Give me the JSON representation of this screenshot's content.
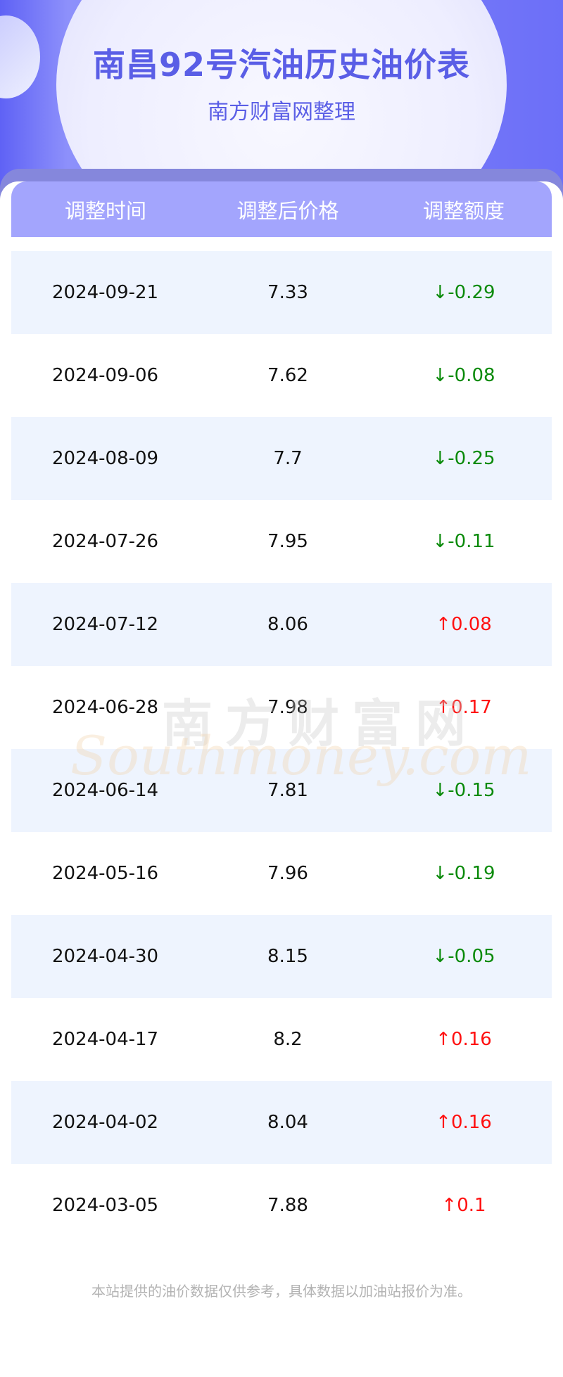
{
  "header": {
    "title": "南昌92号汽油历史油价表",
    "subtitle": "南方财富网整理"
  },
  "table": {
    "columns": [
      "调整时间",
      "调整后价格",
      "调整额度"
    ],
    "rows": [
      {
        "date": "2024-09-21",
        "price": "7.33",
        "change": "↓-0.29",
        "direction": "down"
      },
      {
        "date": "2024-09-06",
        "price": "7.62",
        "change": "↓-0.08",
        "direction": "down"
      },
      {
        "date": "2024-08-09",
        "price": "7.7",
        "change": "↓-0.25",
        "direction": "down"
      },
      {
        "date": "2024-07-26",
        "price": "7.95",
        "change": "↓-0.11",
        "direction": "down"
      },
      {
        "date": "2024-07-12",
        "price": "8.06",
        "change": "↑0.08",
        "direction": "up"
      },
      {
        "date": "2024-06-28",
        "price": "7.98",
        "change": "↑0.17",
        "direction": "up"
      },
      {
        "date": "2024-06-14",
        "price": "7.81",
        "change": "↓-0.15",
        "direction": "down"
      },
      {
        "date": "2024-05-16",
        "price": "7.96",
        "change": "↓-0.19",
        "direction": "down"
      },
      {
        "date": "2024-04-30",
        "price": "8.15",
        "change": "↓-0.05",
        "direction": "down"
      },
      {
        "date": "2024-04-17",
        "price": "8.2",
        "change": "↑0.16",
        "direction": "up"
      },
      {
        "date": "2024-04-02",
        "price": "8.04",
        "change": "↑0.16",
        "direction": "up"
      },
      {
        "date": "2024-03-05",
        "price": "7.88",
        "change": "↑0.1",
        "direction": "up"
      }
    ]
  },
  "watermark": {
    "cn": "南方财富网",
    "en": "Southmoney.com"
  },
  "footer": {
    "note": "本站提供的油价数据仅供参考，具体数据以加油站报价为准。"
  },
  "colors": {
    "accent": "#5a5ee6",
    "header_bg": "#a3a5fd",
    "up": "#ff1010",
    "down": "#0a8a0a",
    "alt_row": "#eef4fe"
  }
}
